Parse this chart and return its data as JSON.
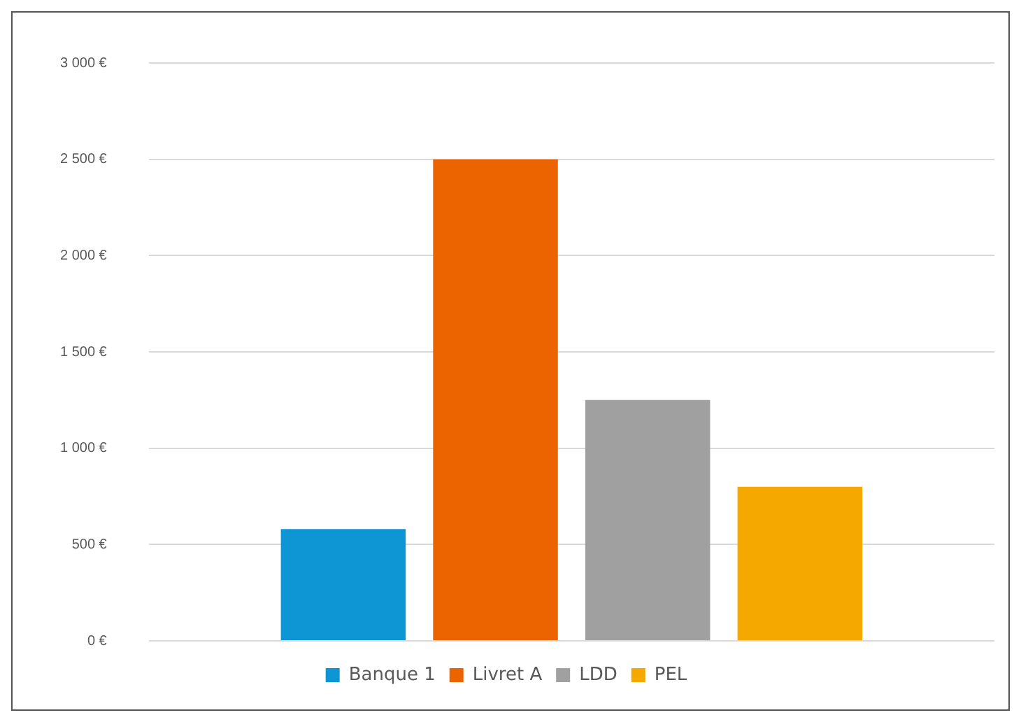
{
  "chart_data": {
    "type": "bar",
    "categories": [
      null
    ],
    "series": [
      {
        "name": "Banque 1",
        "color": "#0e95d3",
        "values": [
          580
        ]
      },
      {
        "name": "Livret A",
        "color": "#ec6400",
        "values": [
          2500
        ]
      },
      {
        "name": "LDD",
        "color": "#a0a0a0",
        "values": [
          1250
        ]
      },
      {
        "name": "PEL",
        "color": "#f4a800",
        "values": [
          800
        ]
      }
    ],
    "ylim": [
      0,
      3000
    ],
    "yticks": [
      {
        "value": 0,
        "label": "0 €"
      },
      {
        "value": 500,
        "label": "500 €"
      },
      {
        "value": 1000,
        "label": "1 000 €"
      },
      {
        "value": 1500,
        "label": "1 500 €"
      },
      {
        "value": 2000,
        "label": "2 000 €"
      },
      {
        "value": 2500,
        "label": "2 500 €"
      },
      {
        "value": 3000,
        "label": "3 000 €"
      }
    ],
    "grid": "y",
    "legend": "bottom"
  }
}
